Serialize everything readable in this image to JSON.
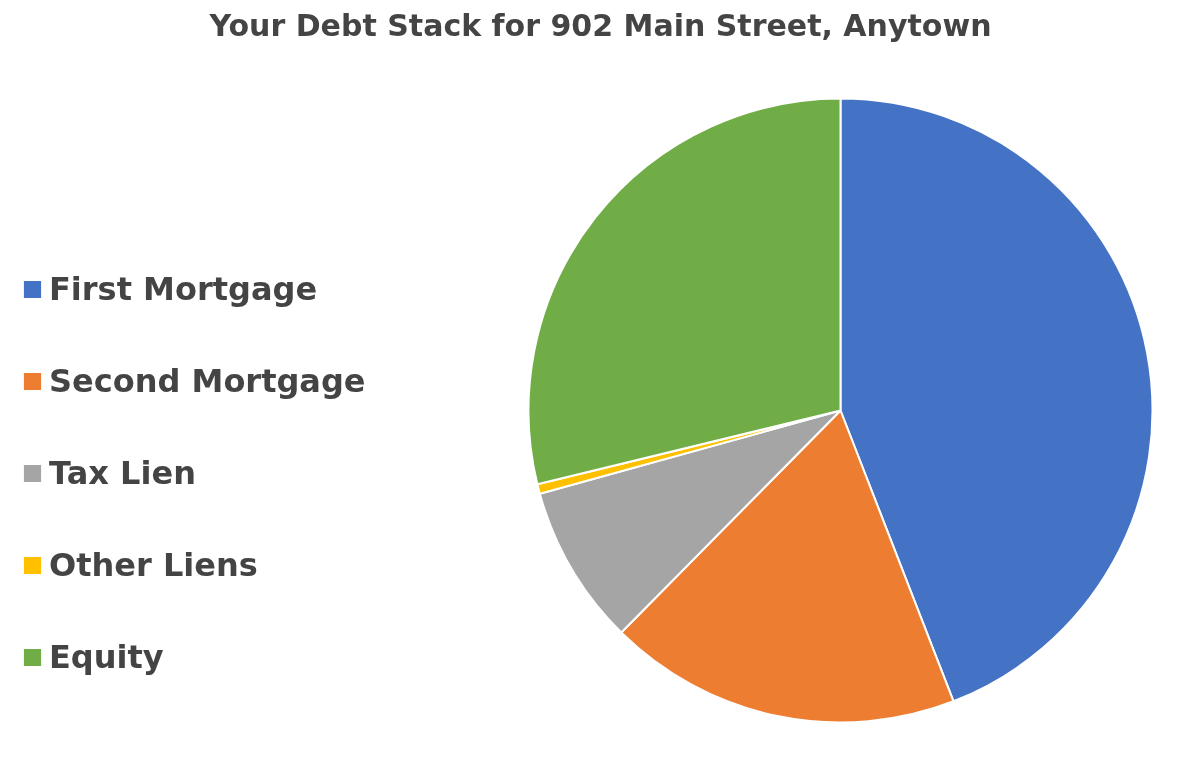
{
  "chart_data": {
    "type": "pie",
    "title": "Your Debt Stack for 902 Main Street, Anytown",
    "categories": [
      "First Mortgage",
      "Second Mortgage",
      "Tax Lien",
      "Other Liens",
      "Equity"
    ],
    "values": [
      44.1,
      18.3,
      8.3,
      0.5,
      28.8
    ],
    "colors": [
      "#4472c4",
      "#ed7d31",
      "#a5a5a5",
      "#ffc000",
      "#70ad47"
    ],
    "legend": "left"
  }
}
